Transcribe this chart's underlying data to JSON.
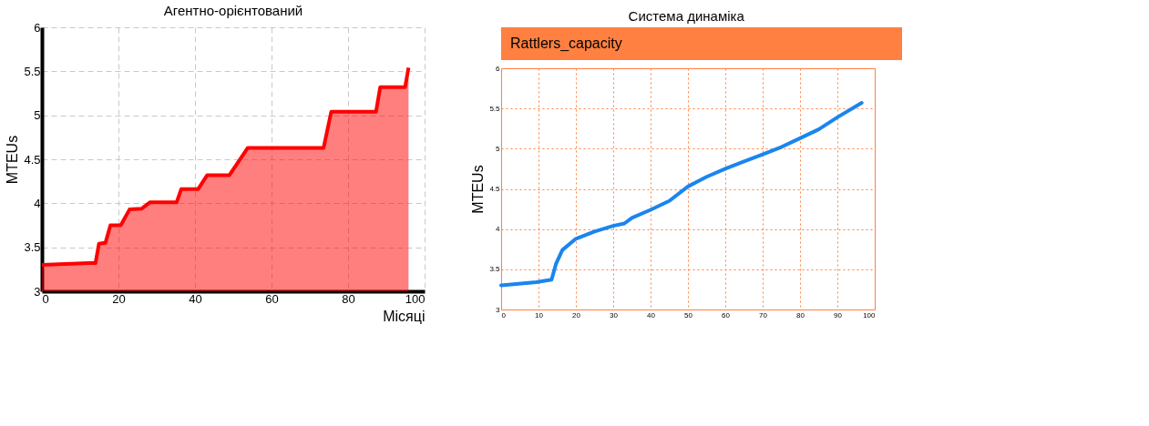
{
  "chart_data": [
    {
      "type": "area",
      "title": "Агентно-орієнтований",
      "xlabel": "Місяці",
      "ylabel": "MTEUs",
      "x": [
        0,
        12.3,
        14,
        14.9,
        16.6,
        17.9,
        20.6,
        22.9,
        26.1,
        28.2,
        35.2,
        36.4,
        40.8,
        43.2,
        49.0,
        53.8,
        73.6,
        75.6,
        87.3,
        88.4,
        94.9,
        95.8
      ],
      "series": [
        {
          "color": "#ff0000",
          "values": [
            3.3,
            3.32,
            3.32,
            3.54,
            3.55,
            3.75,
            3.75,
            3.93,
            3.94,
            4.01,
            4.01,
            4.16,
            4.16,
            4.32,
            4.32,
            4.63,
            4.63,
            5.04,
            5.04,
            5.32,
            5.32,
            5.54
          ]
        }
      ],
      "xlim": [
        0,
        100
      ],
      "xticks": [
        0,
        20,
        40,
        60,
        80,
        100
      ],
      "ylim": [
        3,
        6
      ],
      "yticks": [
        3,
        3.5,
        4,
        4.5,
        5,
        5.5,
        6
      ],
      "grid": true,
      "legend": false
    },
    {
      "type": "line",
      "title": "Система динаміка",
      "ylabel": "MTEUs",
      "x": [
        0,
        9.4,
        13.5,
        14.7,
        16.4,
        20,
        25,
        30,
        33,
        35,
        40,
        45,
        50,
        55,
        60,
        65,
        70,
        75,
        80,
        85,
        90,
        96.5
      ],
      "series": [
        {
          "name": "Rattlers_capacity",
          "color": "#1a85ef",
          "values": [
            3.3,
            3.34,
            3.37,
            3.57,
            3.74,
            3.88,
            3.97,
            4.04,
            4.07,
            4.14,
            4.24,
            4.35,
            4.53,
            4.65,
            4.75,
            4.84,
            4.93,
            5.02,
            5.13,
            5.24,
            5.39,
            5.57
          ]
        }
      ],
      "xlim": [
        0,
        100
      ],
      "xticks": [
        0,
        10,
        20,
        30,
        40,
        50,
        60,
        70,
        80,
        90,
        100
      ],
      "ylim": [
        3,
        6
      ],
      "yticks": [
        3,
        3.5,
        4,
        4.5,
        5,
        5.5,
        6
      ],
      "grid": true,
      "legend": "top"
    }
  ]
}
